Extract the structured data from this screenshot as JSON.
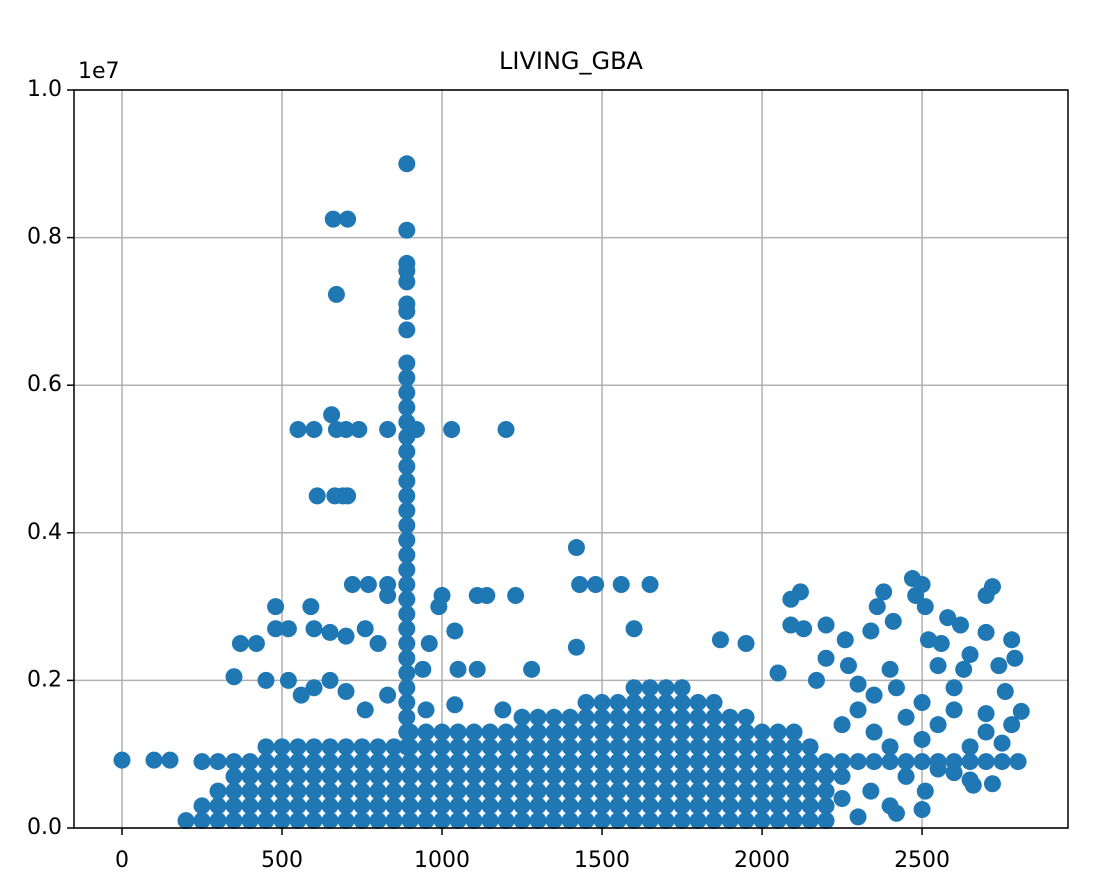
{
  "chart_data": {
    "type": "scatter",
    "title": "LIVING_GBA",
    "y_offset_label": "1e7",
    "color": "#1f77b4",
    "grid": true,
    "xlim": [
      -150,
      2956
    ],
    "ylim": [
      0,
      10000000
    ],
    "xticks": [
      0,
      500,
      1000,
      1500,
      2000,
      2500
    ],
    "yticks": [
      {
        "value": 0,
        "label": "0.0"
      },
      {
        "value": 2000000,
        "label": "0.2"
      },
      {
        "value": 4000000,
        "label": "0.4"
      },
      {
        "value": 6000000,
        "label": "0.6"
      },
      {
        "value": 8000000,
        "label": "0.8"
      },
      {
        "value": 10000000,
        "label": "1.0"
      }
    ],
    "series": [
      {
        "x": [
          200,
          250,
          300,
          350,
          400,
          450,
          500,
          550,
          600,
          650,
          700,
          750,
          800,
          850,
          900,
          950,
          1000,
          1050,
          1100,
          1150,
          1200,
          1250,
          1300,
          1350,
          1400,
          1450,
          1500,
          1550,
          1600,
          1650,
          1700,
          1750,
          1800,
          1850,
          1900,
          1950,
          2000,
          2050,
          2100,
          2150,
          2200
        ],
        "values": [
          100000,
          100000,
          100000,
          100000,
          100000,
          100000,
          100000,
          100000,
          100000,
          100000,
          100000,
          100000,
          100000,
          100000,
          100000,
          100000,
          100000,
          100000,
          100000,
          100000,
          100000,
          100000,
          100000,
          100000,
          100000,
          100000,
          100000,
          100000,
          100000,
          100000,
          100000,
          100000,
          100000,
          100000,
          100000,
          100000,
          100000,
          100000,
          100000,
          100000,
          100000
        ]
      },
      {
        "x": [
          250,
          300,
          350,
          400,
          450,
          500,
          550,
          600,
          650,
          700,
          750,
          800,
          850,
          900,
          950,
          1000,
          1050,
          1100,
          1150,
          1200,
          1250,
          1300,
          1350,
          1400,
          1450,
          1500,
          1550,
          1600,
          1650,
          1700,
          1750,
          1800,
          1850,
          1900,
          1950,
          2000,
          2050,
          2100,
          2150,
          2200
        ],
        "values": [
          300000,
          300000,
          300000,
          300000,
          300000,
          300000,
          300000,
          300000,
          300000,
          300000,
          300000,
          300000,
          300000,
          300000,
          300000,
          300000,
          300000,
          300000,
          300000,
          300000,
          300000,
          300000,
          300000,
          300000,
          300000,
          300000,
          300000,
          300000,
          300000,
          300000,
          300000,
          300000,
          300000,
          300000,
          300000,
          300000,
          300000,
          300000,
          300000,
          300000
        ]
      },
      {
        "x": [
          300,
          350,
          400,
          450,
          500,
          550,
          600,
          650,
          700,
          750,
          800,
          850,
          900,
          950,
          1000,
          1050,
          1100,
          1150,
          1200,
          1250,
          1300,
          1350,
          1400,
          1450,
          1500,
          1550,
          1600,
          1650,
          1700,
          1750,
          1800,
          1850,
          1900,
          1950,
          2000,
          2050,
          2100,
          2150,
          2200
        ],
        "values": [
          500000,
          500000,
          500000,
          500000,
          500000,
          500000,
          500000,
          500000,
          500000,
          500000,
          500000,
          500000,
          500000,
          500000,
          500000,
          500000,
          500000,
          500000,
          500000,
          500000,
          500000,
          500000,
          500000,
          500000,
          500000,
          500000,
          500000,
          500000,
          500000,
          500000,
          500000,
          500000,
          500000,
          500000,
          500000,
          500000,
          500000,
          500000,
          500000
        ]
      },
      {
        "x": [
          350,
          400,
          450,
          500,
          550,
          600,
          650,
          700,
          750,
          800,
          850,
          900,
          950,
          1000,
          1050,
          1100,
          1150,
          1200,
          1250,
          1300,
          1350,
          1400,
          1450,
          1500,
          1550,
          1600,
          1650,
          1700,
          1750,
          1800,
          1850,
          1900,
          1950,
          2000,
          2050,
          2100,
          2150,
          2200,
          2250
        ],
        "values": [
          700000,
          700000,
          700000,
          700000,
          700000,
          700000,
          700000,
          700000,
          700000,
          700000,
          700000,
          700000,
          700000,
          700000,
          700000,
          700000,
          700000,
          700000,
          700000,
          700000,
          700000,
          700000,
          700000,
          700000,
          700000,
          700000,
          700000,
          700000,
          700000,
          700000,
          700000,
          700000,
          700000,
          700000,
          700000,
          700000,
          700000,
          700000,
          700000
        ]
      },
      {
        "x": [
          250,
          300,
          350,
          400,
          450,
          500,
          550,
          600,
          650,
          700,
          750,
          800,
          850,
          900,
          950,
          1000,
          1050,
          1100,
          1150,
          1200,
          1250,
          1300,
          1350,
          1400,
          1450,
          1500,
          1550,
          1600,
          1650,
          1700,
          1750,
          1800,
          1850,
          1900,
          1950,
          2000,
          2050,
          2100,
          2150,
          2200,
          2250,
          2300,
          2350,
          2400,
          2450,
          2500,
          2550,
          2600,
          2650,
          2700,
          2750,
          2800
        ],
        "values": [
          900000,
          900000,
          900000,
          900000,
          900000,
          900000,
          900000,
          900000,
          900000,
          900000,
          900000,
          900000,
          900000,
          900000,
          900000,
          900000,
          900000,
          900000,
          900000,
          900000,
          900000,
          900000,
          900000,
          900000,
          900000,
          900000,
          900000,
          900000,
          900000,
          900000,
          900000,
          900000,
          900000,
          900000,
          900000,
          900000,
          900000,
          900000,
          900000,
          900000,
          900000,
          900000,
          900000,
          900000,
          900000,
          900000,
          900000,
          900000,
          900000,
          900000,
          900000,
          900000
        ]
      },
      {
        "x": [
          450,
          500,
          550,
          600,
          650,
          700,
          750,
          800,
          850,
          900,
          950,
          1000,
          1050,
          1100,
          1150,
          1200,
          1250,
          1300,
          1350,
          1400,
          1450,
          1500,
          1550,
          1600,
          1650,
          1700,
          1750,
          1800,
          1850,
          1900,
          1950,
          2000,
          2050,
          2100,
          2150
        ],
        "values": [
          1100000,
          1100000,
          1100000,
          1100000,
          1100000,
          1100000,
          1100000,
          1100000,
          1100000,
          1100000,
          1100000,
          1100000,
          1100000,
          1100000,
          1100000,
          1100000,
          1100000,
          1100000,
          1100000,
          1100000,
          1100000,
          1100000,
          1100000,
          1100000,
          1100000,
          1100000,
          1100000,
          1100000,
          1100000,
          1100000,
          1100000,
          1100000,
          1100000,
          1100000,
          1100000
        ]
      },
      {
        "x": [
          900,
          950,
          1000,
          1050,
          1100,
          1150,
          1200,
          1250,
          1300,
          1350,
          1400,
          1450,
          1500,
          1550,
          1600,
          1650,
          1700,
          1750,
          1800,
          1850,
          1900,
          1950,
          2000,
          2050,
          2100
        ],
        "values": [
          1300000,
          1300000,
          1300000,
          1300000,
          1300000,
          1300000,
          1300000,
          1300000,
          1300000,
          1300000,
          1300000,
          1300000,
          1300000,
          1300000,
          1300000,
          1300000,
          1300000,
          1300000,
          1300000,
          1300000,
          1300000,
          1300000,
          1300000,
          1300000,
          1300000
        ]
      },
      {
        "x": [
          1250,
          1300,
          1350,
          1400,
          1450,
          1500,
          1550,
          1600,
          1650,
          1700,
          1750,
          1800,
          1850,
          1900,
          1950
        ],
        "values": [
          1500000,
          1500000,
          1500000,
          1500000,
          1500000,
          1500000,
          1500000,
          1500000,
          1500000,
          1500000,
          1500000,
          1500000,
          1500000,
          1500000,
          1500000
        ]
      },
      {
        "x": [
          1450,
          1500,
          1550,
          1600,
          1650,
          1700,
          1750,
          1800,
          1850
        ],
        "values": [
          1700000,
          1700000,
          1700000,
          1700000,
          1700000,
          1700000,
          1700000,
          1700000,
          1700000
        ]
      },
      {
        "x": [
          1600,
          1650,
          1700,
          1750
        ],
        "values": [
          1900000,
          1900000,
          1900000,
          1900000
        ]
      },
      {
        "x": [
          890,
          890,
          890,
          890,
          890,
          890,
          890,
          890,
          890,
          890,
          890,
          890,
          890,
          890,
          890,
          890,
          890,
          890,
          890,
          890,
          890,
          890,
          890,
          890,
          890,
          890,
          890,
          890,
          890,
          890,
          890,
          890,
          890,
          890,
          890
        ],
        "values": [
          1100000,
          1300000,
          1500000,
          1700000,
          1900000,
          2100000,
          2300000,
          2500000,
          2700000,
          2900000,
          3100000,
          3300000,
          3500000,
          3700000,
          3900000,
          4100000,
          4300000,
          4500000,
          4700000,
          4900000,
          5100000,
          5300000,
          5500000,
          5700000,
          5900000,
          6100000,
          6300000,
          6750000,
          7000000,
          7100000,
          7400000,
          7550000,
          7650000,
          8100000,
          9000000
        ]
      },
      {
        "x": [
          0,
          100,
          150,
          660,
          705,
          670,
          550,
          600,
          655,
          670,
          700,
          740,
          830,
          920,
          1030,
          1200,
          610,
          665,
          690,
          705,
          1420,
          720,
          770,
          830,
          1430,
          1480,
          1560,
          1650,
          1000,
          1110,
          1140,
          1230,
          830,
          480,
          590,
          990,
          1040,
          1600,
          370,
          420,
          480,
          520,
          600,
          650,
          700,
          760,
          800,
          960,
          1420,
          350,
          450,
          520,
          560,
          600,
          650,
          700,
          760,
          830,
          940,
          1050,
          1110,
          1280,
          1190,
          1040,
          950,
          2090,
          2120,
          2360,
          2380,
          2470,
          2500,
          2510,
          2480,
          2700,
          2720,
          2580,
          2620,
          2340,
          2410,
          2200,
          2090,
          2130,
          1870,
          1950,
          2260,
          2650,
          2700,
          2780,
          2560,
          2520,
          2050,
          2170,
          2300,
          2350,
          2420,
          2600,
          2760,
          2740,
          2790,
          2400,
          2200,
          2270,
          2550,
          2630,
          2810,
          2300,
          2450,
          2500,
          2600,
          2700,
          2250,
          2350,
          2550,
          2700,
          2780,
          2400,
          2500,
          2650,
          2750,
          2450,
          2550,
          2650,
          2720,
          2300,
          2420,
          2500,
          2510,
          2340,
          2250,
          2400,
          2600,
          2660
        ],
        "values": [
          920000,
          920000,
          920000,
          8250000,
          8250000,
          7230000,
          5400000,
          5400000,
          5600000,
          5400000,
          5400000,
          5400000,
          5400000,
          5400000,
          5400000,
          5400000,
          4500000,
          4500000,
          4500000,
          4500000,
          3800000,
          3300000,
          3300000,
          3300000,
          3300000,
          3300000,
          3300000,
          3300000,
          3150000,
          3150000,
          3150000,
          3150000,
          3150000,
          3000000,
          3000000,
          3000000,
          2670000,
          2700000,
          2500000,
          2500000,
          2700000,
          2700000,
          2700000,
          2650000,
          2600000,
          2700000,
          2500000,
          2500000,
          2450000,
          2050000,
          2000000,
          2000000,
          1800000,
          1900000,
          2000000,
          1850000,
          1600000,
          1800000,
          2150000,
          2150000,
          2150000,
          2150000,
          1600000,
          1670000,
          1600000,
          3100000,
          3200000,
          3000000,
          3200000,
          3380000,
          3300000,
          3000000,
          3150000,
          3150000,
          3270000,
          2850000,
          2750000,
          2670000,
          2800000,
          2750000,
          2750000,
          2700000,
          2550000,
          2500000,
          2550000,
          2350000,
          2650000,
          2550000,
          2500000,
          2550000,
          2100000,
          2000000,
          1950000,
          1800000,
          1900000,
          1900000,
          1850000,
          2200000,
          2300000,
          2150000,
          2300000,
          2200000,
          2200000,
          2150000,
          1580000,
          1600000,
          1500000,
          1700000,
          1600000,
          1550000,
          1400000,
          1300000,
          1400000,
          1300000,
          1400000,
          1100000,
          1200000,
          1100000,
          1150000,
          700000,
          800000,
          650000,
          600000,
          150000,
          200000,
          250000,
          500000,
          500000,
          400000,
          300000,
          750000,
          580000
        ]
      }
    ]
  }
}
